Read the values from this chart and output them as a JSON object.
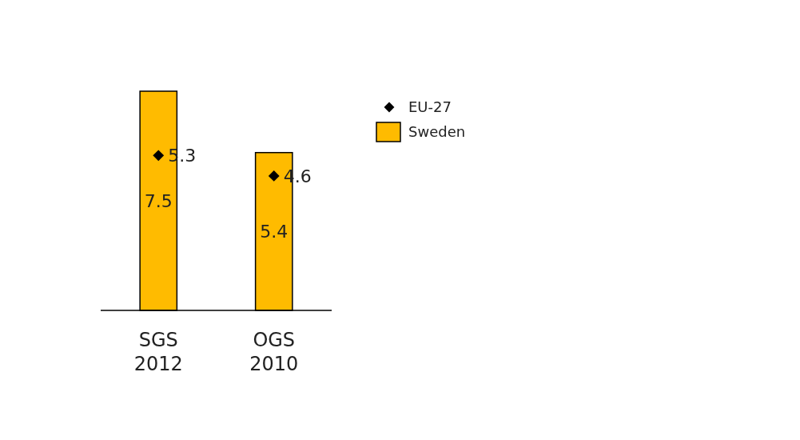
{
  "chart_data": {
    "type": "bar",
    "categories": [
      "SGS 2012",
      "OGS 2010"
    ],
    "series": [
      {
        "name": "Sweden",
        "color": "#ffbb00",
        "values": [
          7.5,
          5.4
        ]
      },
      {
        "name": "EU-27",
        "type": "scatter",
        "color": "#000000",
        "values": [
          5.3,
          4.6
        ],
        "marker": "diamond"
      }
    ],
    "data_labels": true,
    "legend": "top right"
  }
}
